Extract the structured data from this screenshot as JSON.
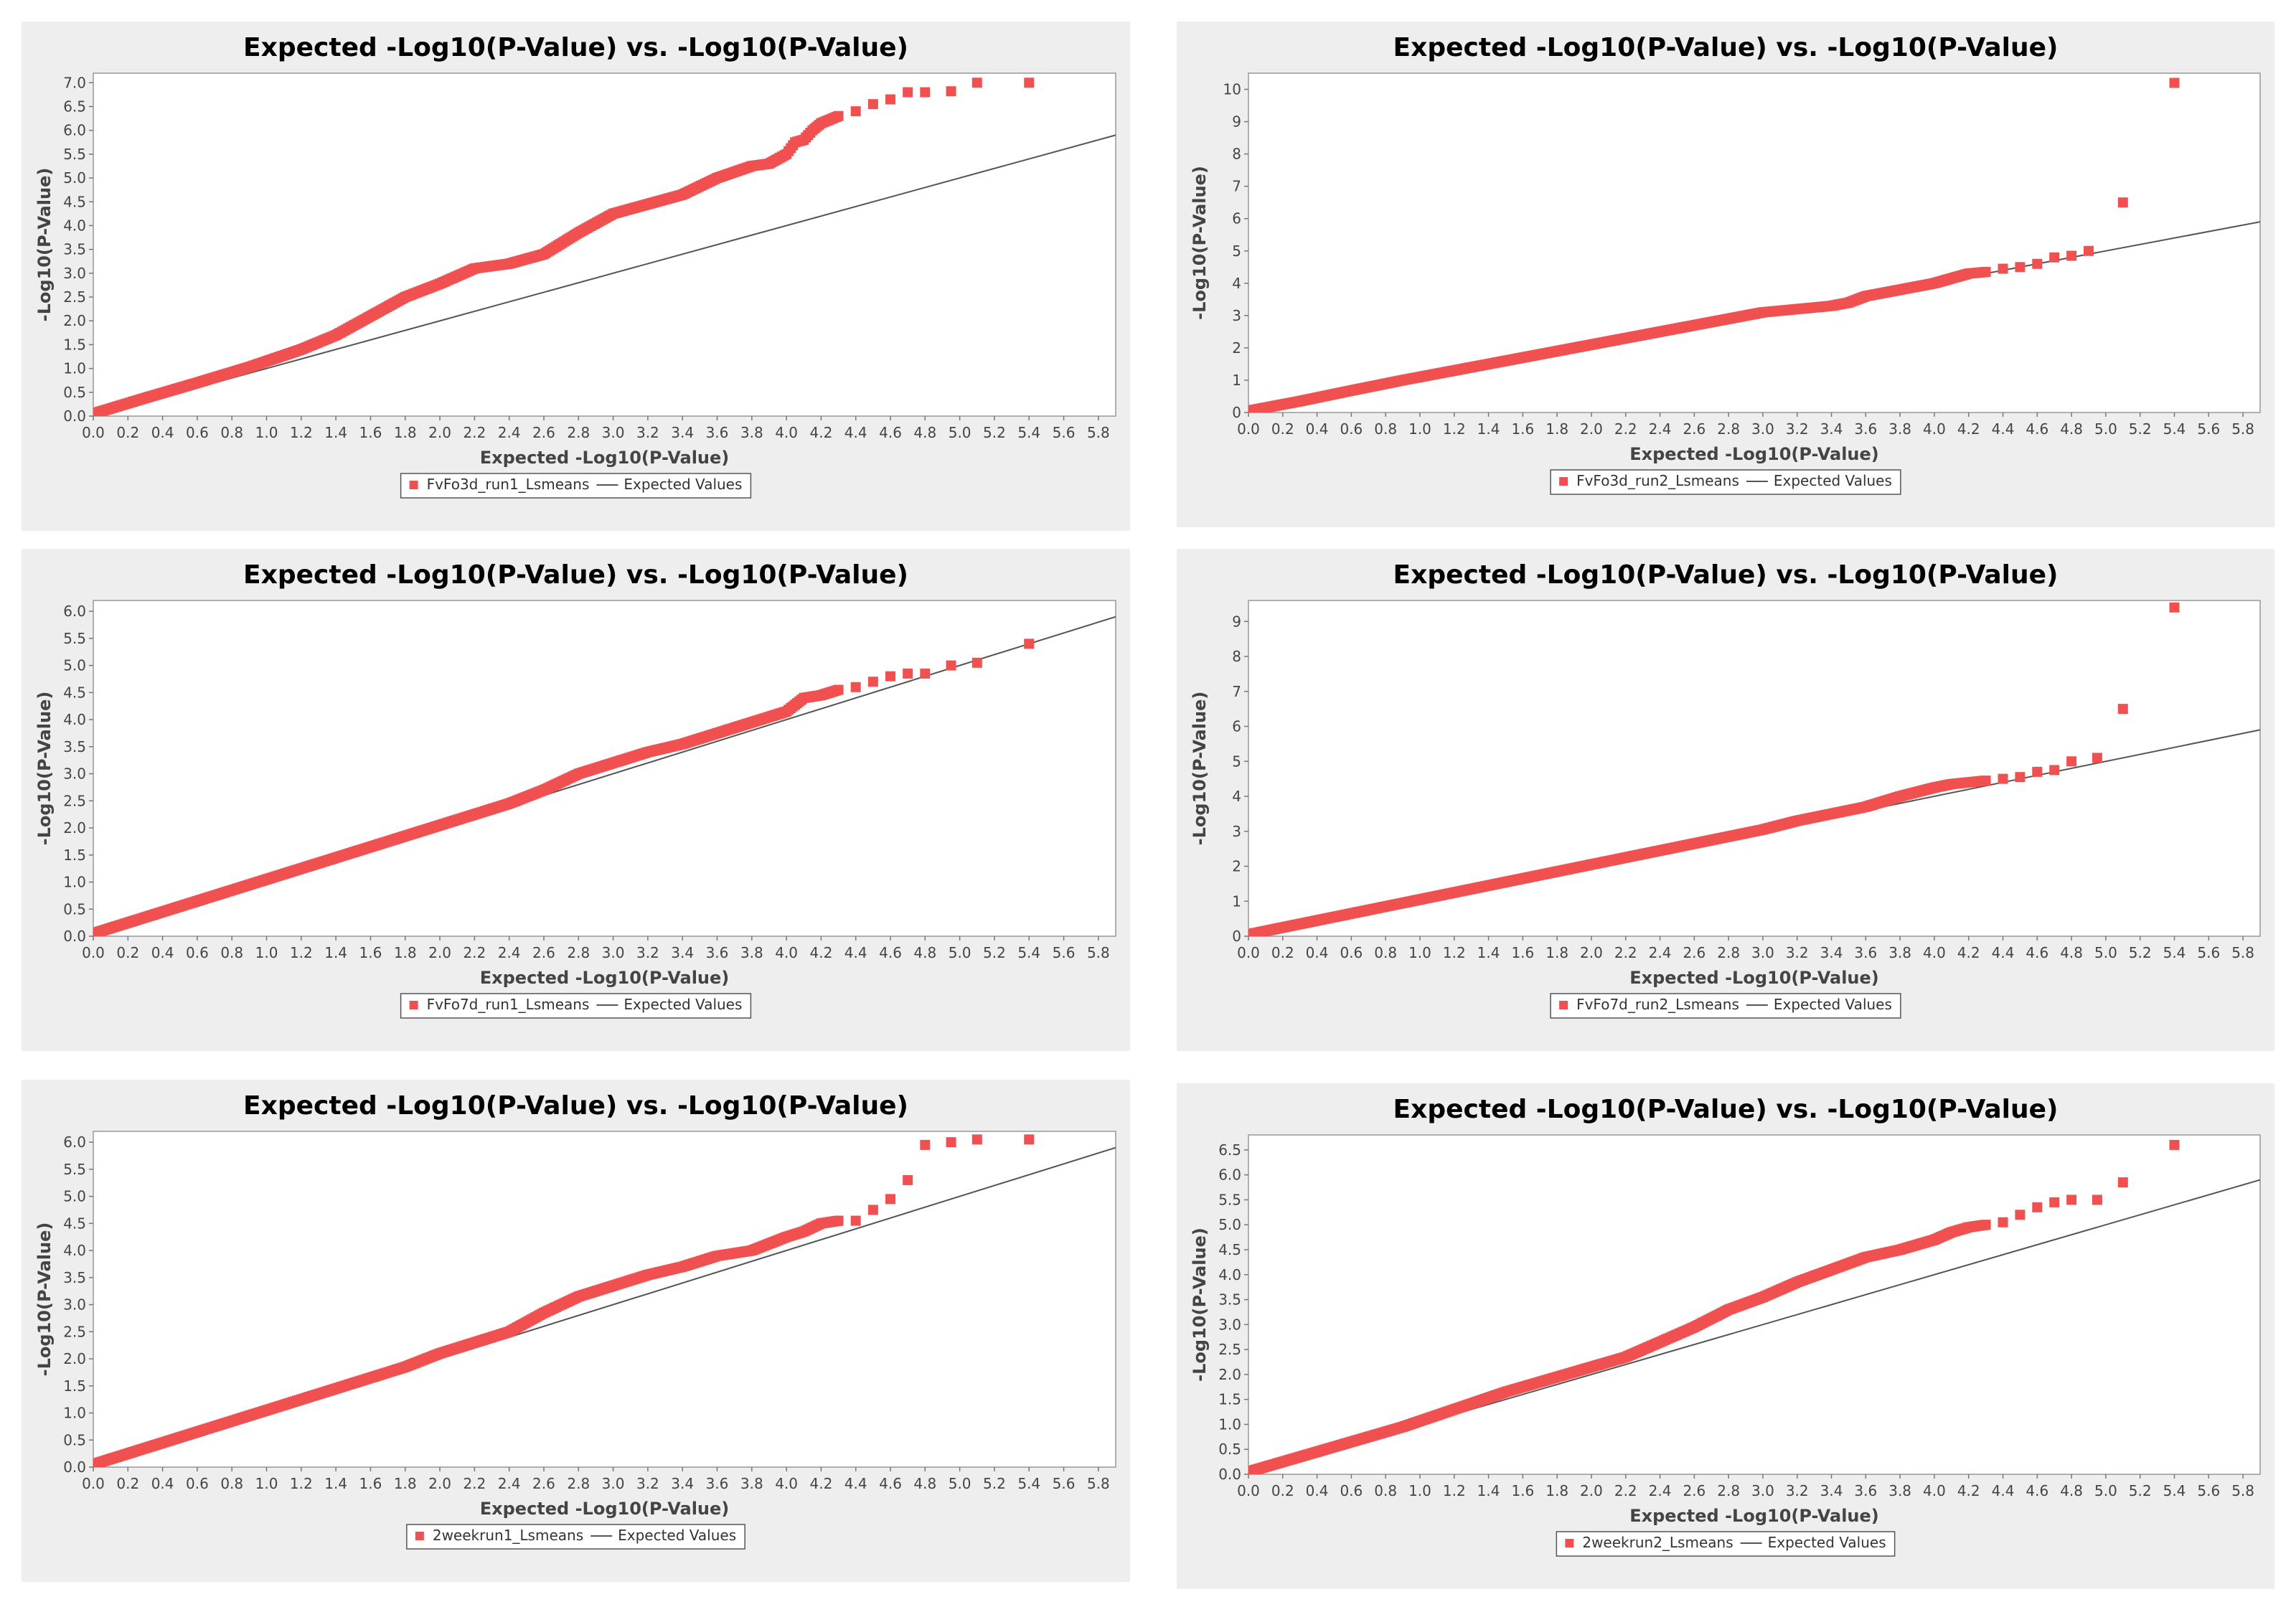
{
  "colors": {
    "points": "#f05050",
    "expected_line": "#555555",
    "panel_bg": "#eeeeee",
    "plot_bg": "#ffffff"
  },
  "chart_data": [
    {
      "type": "scatter",
      "title": "Expected -Log10(P-Value) vs. -Log10(P-Value)",
      "xlabel": "Expected -Log10(P-Value)",
      "ylabel": "-Log10(P-Value)",
      "xlim": [
        0,
        5.9
      ],
      "ylim": [
        0,
        7.2
      ],
      "xticks": [
        "0.0",
        "0.2",
        "0.4",
        "0.6",
        "0.8",
        "1.0",
        "1.2",
        "1.4",
        "1.6",
        "1.8",
        "2.0",
        "2.2",
        "2.4",
        "2.6",
        "2.8",
        "3.0",
        "3.2",
        "3.4",
        "3.6",
        "3.8",
        "4.0",
        "4.2",
        "4.4",
        "4.6",
        "4.8",
        "5.0",
        "5.2",
        "5.4",
        "5.6",
        "5.8"
      ],
      "yticks": [
        "0.0",
        "0.5",
        "1.0",
        "1.5",
        "2.0",
        "2.5",
        "3.0",
        "3.5",
        "4.0",
        "4.5",
        "5.0",
        "5.5",
        "6.0",
        "6.5",
        "7.0"
      ],
      "legend_position": "bottom",
      "series": [
        {
          "name": "FvFo3d_run1_Lsmeans",
          "kind": "points",
          "x": [
            0,
            0.3,
            0.6,
            0.9,
            1.2,
            1.4,
            1.6,
            1.8,
            2.0,
            2.2,
            2.4,
            2.6,
            2.8,
            3.0,
            3.2,
            3.4,
            3.6,
            3.8,
            3.9,
            4.0,
            4.05,
            4.1,
            4.15,
            4.2,
            4.3,
            4.4,
            4.5,
            4.6,
            4.7,
            4.8,
            4.95,
            5.1,
            5.4
          ],
          "y": [
            0.05,
            0.38,
            0.7,
            1.03,
            1.4,
            1.7,
            2.1,
            2.5,
            2.78,
            3.1,
            3.2,
            3.4,
            3.85,
            4.25,
            4.45,
            4.65,
            5.0,
            5.25,
            5.3,
            5.5,
            5.75,
            5.8,
            6.0,
            6.15,
            6.3,
            6.4,
            6.55,
            6.65,
            6.8,
            6.8,
            6.82,
            7.0,
            7.0
          ]
        },
        {
          "name": "Expected Values",
          "kind": "line",
          "x": [
            0,
            5.9
          ],
          "y": [
            0,
            5.9
          ]
        }
      ]
    },
    {
      "type": "scatter",
      "title": "Expected -Log10(P-Value) vs. -Log10(P-Value)",
      "xlabel": "Expected -Log10(P-Value)",
      "ylabel": "-Log10(P-Value)",
      "xlim": [
        0,
        5.9
      ],
      "ylim": [
        0,
        10.5
      ],
      "xticks": [
        "0.0",
        "0.2",
        "0.4",
        "0.6",
        "0.8",
        "1.0",
        "1.2",
        "1.4",
        "1.6",
        "1.8",
        "2.0",
        "2.2",
        "2.4",
        "2.6",
        "2.8",
        "3.0",
        "3.2",
        "3.4",
        "3.6",
        "3.8",
        "4.0",
        "4.2",
        "4.4",
        "4.6",
        "4.8",
        "5.0",
        "5.2",
        "5.4",
        "5.6",
        "5.8"
      ],
      "yticks": [
        "0",
        "1",
        "2",
        "3",
        "4",
        "5",
        "6",
        "7",
        "8",
        "9",
        "10"
      ],
      "legend_position": "bottom",
      "series": [
        {
          "name": "FvFo3d_run2_Lsmeans",
          "kind": "points",
          "x": [
            0,
            0.3,
            0.6,
            0.9,
            1.2,
            1.5,
            1.8,
            2.0,
            2.2,
            2.4,
            2.6,
            2.8,
            3.0,
            3.2,
            3.4,
            3.5,
            3.6,
            3.8,
            4.0,
            4.2,
            4.3,
            4.4,
            4.5,
            4.6,
            4.7,
            4.8,
            4.9,
            5.1,
            5.4
          ],
          "y": [
            0.05,
            0.35,
            0.68,
            1.0,
            1.3,
            1.6,
            1.9,
            2.1,
            2.3,
            2.5,
            2.7,
            2.9,
            3.1,
            3.2,
            3.3,
            3.4,
            3.6,
            3.8,
            4.0,
            4.3,
            4.35,
            4.45,
            4.5,
            4.6,
            4.8,
            4.85,
            5.0,
            6.5,
            10.2
          ]
        },
        {
          "name": "Expected Values",
          "kind": "line",
          "x": [
            0,
            5.9
          ],
          "y": [
            0,
            5.9
          ]
        }
      ]
    },
    {
      "type": "scatter",
      "title": "Expected -Log10(P-Value) vs. -Log10(P-Value)",
      "xlabel": "Expected -Log10(P-Value)",
      "ylabel": "-Log10(P-Value)",
      "xlim": [
        0,
        5.9
      ],
      "ylim": [
        0,
        6.2
      ],
      "xticks": [
        "0.0",
        "0.2",
        "0.4",
        "0.6",
        "0.8",
        "1.0",
        "1.2",
        "1.4",
        "1.6",
        "1.8",
        "2.0",
        "2.2",
        "2.4",
        "2.6",
        "2.8",
        "3.0",
        "3.2",
        "3.4",
        "3.6",
        "3.8",
        "4.0",
        "4.2",
        "4.4",
        "4.6",
        "4.8",
        "5.0",
        "5.2",
        "5.4",
        "5.6",
        "5.8"
      ],
      "yticks": [
        "0.0",
        "0.5",
        "1.0",
        "1.5",
        "2.0",
        "2.5",
        "3.0",
        "3.5",
        "4.0",
        "4.5",
        "5.0",
        "5.5",
        "6.0"
      ],
      "legend_position": "bottom",
      "series": [
        {
          "name": "FvFo7d_run1_Lsmeans",
          "kind": "points",
          "x": [
            0,
            0.3,
            0.6,
            0.9,
            1.2,
            1.5,
            1.8,
            2.0,
            2.2,
            2.4,
            2.6,
            2.8,
            3.0,
            3.2,
            3.4,
            3.6,
            3.8,
            4.0,
            4.1,
            4.2,
            4.3,
            4.4,
            4.5,
            4.6,
            4.7,
            4.8,
            4.95,
            5.1,
            5.4
          ],
          "y": [
            0.05,
            0.35,
            0.65,
            0.95,
            1.25,
            1.55,
            1.85,
            2.05,
            2.25,
            2.45,
            2.7,
            3.0,
            3.2,
            3.4,
            3.55,
            3.75,
            3.95,
            4.15,
            4.4,
            4.45,
            4.55,
            4.6,
            4.7,
            4.8,
            4.85,
            4.85,
            5.0,
            5.05,
            5.4
          ]
        },
        {
          "name": "Expected Values",
          "kind": "line",
          "x": [
            0,
            5.9
          ],
          "y": [
            0,
            5.9
          ]
        }
      ]
    },
    {
      "type": "scatter",
      "title": "Expected -Log10(P-Value) vs. -Log10(P-Value)",
      "xlabel": "Expected -Log10(P-Value)",
      "ylabel": "-Log10(P-Value)",
      "xlim": [
        0,
        5.9
      ],
      "ylim": [
        0,
        9.6
      ],
      "xticks": [
        "0.0",
        "0.2",
        "0.4",
        "0.6",
        "0.8",
        "1.0",
        "1.2",
        "1.4",
        "1.6",
        "1.8",
        "2.0",
        "2.2",
        "2.4",
        "2.6",
        "2.8",
        "3.0",
        "3.2",
        "3.4",
        "3.6",
        "3.8",
        "4.0",
        "4.2",
        "4.4",
        "4.6",
        "4.8",
        "5.0",
        "5.2",
        "5.4",
        "5.6",
        "5.8"
      ],
      "yticks": [
        "0",
        "1",
        "2",
        "3",
        "4",
        "5",
        "6",
        "7",
        "8",
        "9"
      ],
      "legend_position": "bottom",
      "series": [
        {
          "name": "FvFo7d_run2_Lsmeans",
          "kind": "points",
          "x": [
            0,
            0.3,
            0.6,
            0.9,
            1.2,
            1.5,
            1.8,
            2.0,
            2.2,
            2.4,
            2.6,
            2.8,
            3.0,
            3.2,
            3.4,
            3.6,
            3.8,
            4.0,
            4.1,
            4.2,
            4.3,
            4.4,
            4.5,
            4.6,
            4.7,
            4.8,
            4.95,
            5.1,
            5.4
          ],
          "y": [
            0.05,
            0.35,
            0.65,
            0.95,
            1.25,
            1.55,
            1.85,
            2.05,
            2.25,
            2.45,
            2.65,
            2.85,
            3.05,
            3.3,
            3.5,
            3.7,
            4.0,
            4.25,
            4.35,
            4.4,
            4.45,
            4.5,
            4.55,
            4.7,
            4.75,
            5.0,
            5.1,
            6.5,
            9.4
          ]
        },
        {
          "name": "Expected Values",
          "kind": "line",
          "x": [
            0,
            5.9
          ],
          "y": [
            0,
            5.9
          ]
        }
      ]
    },
    {
      "type": "scatter",
      "title": "Expected -Log10(P-Value) vs. -Log10(P-Value)",
      "xlabel": "Expected -Log10(P-Value)",
      "ylabel": "-Log10(P-Value)",
      "xlim": [
        0,
        5.9
      ],
      "ylim": [
        0,
        6.2
      ],
      "xticks": [
        "0.0",
        "0.2",
        "0.4",
        "0.6",
        "0.8",
        "1.0",
        "1.2",
        "1.4",
        "1.6",
        "1.8",
        "2.0",
        "2.2",
        "2.4",
        "2.6",
        "2.8",
        "3.0",
        "3.2",
        "3.4",
        "3.6",
        "3.8",
        "4.0",
        "4.2",
        "4.4",
        "4.6",
        "4.8",
        "5.0",
        "5.2",
        "5.4",
        "5.6",
        "5.8"
      ],
      "yticks": [
        "0.0",
        "0.5",
        "1.0",
        "1.5",
        "2.0",
        "2.5",
        "3.0",
        "3.5",
        "4.0",
        "4.5",
        "5.0",
        "5.5",
        "6.0"
      ],
      "legend_position": "bottom",
      "series": [
        {
          "name": "2weekrun1_Lsmeans",
          "kind": "points",
          "x": [
            0,
            0.3,
            0.6,
            0.9,
            1.2,
            1.5,
            1.8,
            2.0,
            2.2,
            2.4,
            2.6,
            2.8,
            3.0,
            3.2,
            3.4,
            3.6,
            3.8,
            4.0,
            4.1,
            4.2,
            4.3,
            4.4,
            4.5,
            4.6,
            4.7,
            4.8,
            4.95,
            5.1,
            5.4
          ],
          "y": [
            0.05,
            0.35,
            0.65,
            0.95,
            1.25,
            1.55,
            1.85,
            2.1,
            2.3,
            2.5,
            2.85,
            3.15,
            3.35,
            3.55,
            3.7,
            3.9,
            4.0,
            4.25,
            4.35,
            4.5,
            4.55,
            4.55,
            4.75,
            4.95,
            5.3,
            5.95,
            6.0,
            6.05,
            6.05
          ]
        },
        {
          "name": "Expected Values",
          "kind": "line",
          "x": [
            0,
            5.9
          ],
          "y": [
            0,
            5.9
          ]
        }
      ]
    },
    {
      "type": "scatter",
      "title": "Expected -Log10(P-Value) vs. -Log10(P-Value)",
      "xlabel": "Expected -Log10(P-Value)",
      "ylabel": "-Log10(P-Value)",
      "xlim": [
        0,
        5.9
      ],
      "ylim": [
        0,
        6.8
      ],
      "xticks": [
        "0.0",
        "0.2",
        "0.4",
        "0.6",
        "0.8",
        "1.0",
        "1.2",
        "1.4",
        "1.6",
        "1.8",
        "2.0",
        "2.2",
        "2.4",
        "2.6",
        "2.8",
        "3.0",
        "3.2",
        "3.4",
        "3.6",
        "3.8",
        "4.0",
        "4.2",
        "4.4",
        "4.6",
        "4.8",
        "5.0",
        "5.2",
        "5.4",
        "5.6",
        "5.8"
      ],
      "yticks": [
        "0.0",
        "0.5",
        "1.0",
        "1.5",
        "2.0",
        "2.5",
        "3.0",
        "3.5",
        "4.0",
        "4.5",
        "5.0",
        "5.5",
        "6.0",
        "6.5"
      ],
      "legend_position": "bottom",
      "series": [
        {
          "name": "2weekrun2_Lsmeans",
          "kind": "points",
          "x": [
            0,
            0.3,
            0.6,
            0.9,
            1.2,
            1.5,
            1.8,
            2.0,
            2.2,
            2.4,
            2.6,
            2.8,
            3.0,
            3.2,
            3.4,
            3.6,
            3.8,
            4.0,
            4.1,
            4.2,
            4.3,
            4.4,
            4.5,
            4.6,
            4.7,
            4.8,
            4.95,
            5.1,
            5.4
          ],
          "y": [
            0.05,
            0.35,
            0.65,
            0.95,
            1.3,
            1.65,
            1.95,
            2.15,
            2.35,
            2.65,
            2.95,
            3.3,
            3.55,
            3.85,
            4.1,
            4.35,
            4.5,
            4.7,
            4.85,
            4.95,
            5.0,
            5.05,
            5.2,
            5.35,
            5.45,
            5.5,
            5.5,
            5.85,
            6.6
          ]
        },
        {
          "name": "Expected Values",
          "kind": "line",
          "x": [
            0,
            5.9
          ],
          "y": [
            0,
            5.9
          ]
        }
      ]
    }
  ]
}
